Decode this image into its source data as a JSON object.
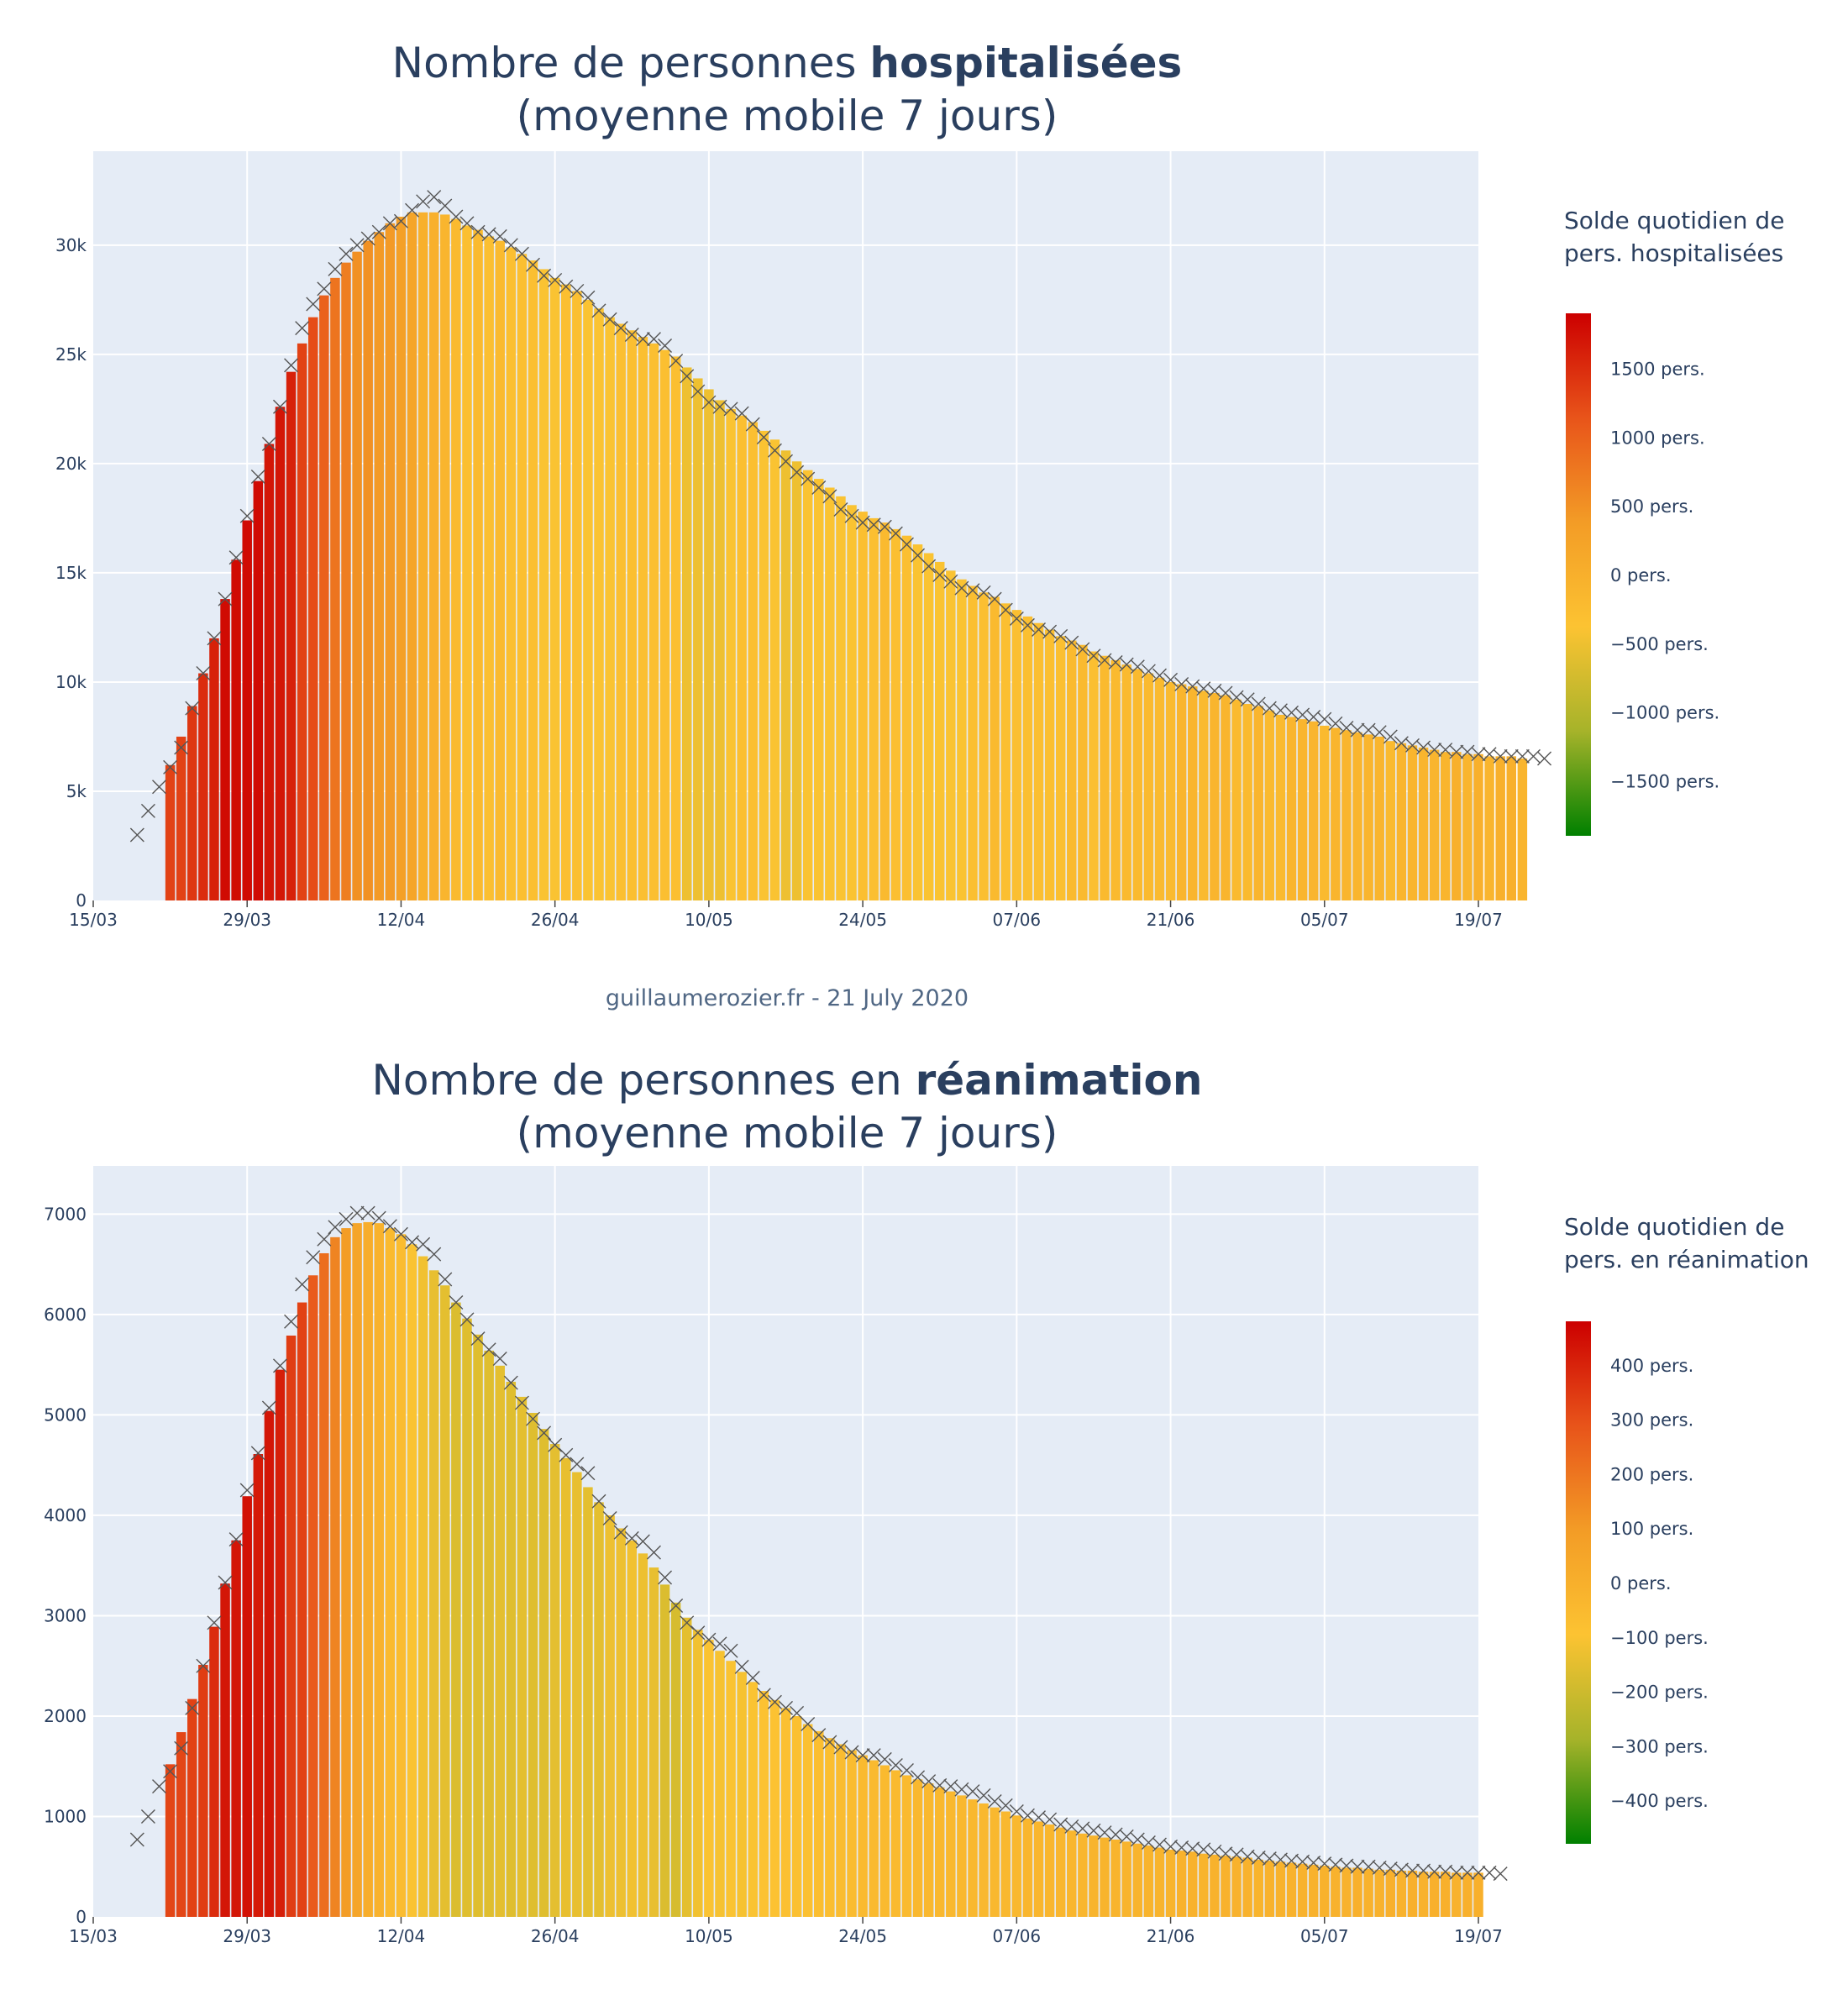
{
  "credit": "guillaumerozier.fr - 21 July 2020",
  "colors": {
    "plot_bg": "#e5ecf6",
    "grid": "#ffffff",
    "text": "#2a3f5f",
    "marker": "#555555",
    "scale": [
      "#008000",
      "#a6b32a",
      "#fcc332",
      "#f39c26",
      "#e8541a",
      "#cc0000"
    ]
  },
  "chart_data": [
    {
      "type": "bar",
      "title_prefix": "Nombre de personnes ",
      "title_bold": "hospitalisées",
      "subtitle": "(moyenne mobile 7 jours)",
      "x_start": "2020-03-19",
      "x_ticks": [
        "15/03",
        "29/03",
        "12/04",
        "26/04",
        "10/05",
        "24/05",
        "07/06",
        "21/06",
        "05/07",
        "19/07"
      ],
      "y_ticks": [
        "0",
        "5k",
        "10k",
        "15k",
        "20k",
        "25k",
        "30k"
      ],
      "ylim": [
        0,
        34300
      ],
      "raw_values": [
        3000,
        4100,
        5200,
        6100,
        7000,
        8800,
        10400,
        12000,
        13800,
        15700,
        17600,
        19400,
        20900,
        22600,
        24500,
        26200,
        27300,
        28000,
        28900,
        29600,
        30000,
        30300,
        30600,
        31000,
        31100,
        31600,
        32000,
        32200,
        31800,
        31300,
        31000,
        30600,
        30500,
        30400,
        30000,
        29600,
        29100,
        28600,
        28400,
        28100,
        27900,
        27600,
        27000,
        26600,
        26200,
        25900,
        25700,
        25700,
        25400,
        24700,
        24000,
        23300,
        22800,
        22600,
        22500,
        22300,
        21800,
        21200,
        20600,
        20100,
        19600,
        19300,
        18900,
        18500,
        17900,
        17600,
        17300,
        17200,
        17100,
        16800,
        16300,
        15800,
        15300,
        14900,
        14600,
        14300,
        14200,
        14100,
        13800,
        13300,
        12900,
        12600,
        12400,
        12300,
        12100,
        11800,
        11500,
        11200,
        11000,
        10900,
        10800,
        10700,
        10500,
        10300,
        10100,
        9900,
        9800,
        9700,
        9600,
        9500,
        9300,
        9200,
        9000,
        8800,
        8700,
        8600,
        8500,
        8400,
        8300,
        8100,
        7900,
        7800,
        7800,
        7700,
        7500,
        7200,
        7100,
        7000,
        6900,
        6900,
        6800,
        6800,
        6700,
        6700,
        6600,
        6600,
        6600,
        6600,
        6500
      ],
      "bar_offset": 3,
      "bar_values": [
        6200,
        7500,
        8900,
        10400,
        12000,
        13800,
        15600,
        17400,
        19200,
        20900,
        22600,
        24200,
        25500,
        26700,
        27700,
        28500,
        29200,
        29700,
        30200,
        30600,
        31000,
        31300,
        31500,
        31500,
        31500,
        31400,
        31200,
        30900,
        30700,
        30400,
        30200,
        29900,
        29600,
        29300,
        28900,
        28500,
        28200,
        27900,
        27500,
        27100,
        26700,
        26400,
        26100,
        25800,
        25500,
        25200,
        24900,
        24400,
        23900,
        23400,
        22900,
        22500,
        22200,
        21900,
        21500,
        21100,
        20600,
        20100,
        19700,
        19300,
        18900,
        18500,
        18100,
        17800,
        17500,
        17300,
        17000,
        16700,
        16300,
        15900,
        15500,
        15100,
        14700,
        14400,
        14100,
        13900,
        13600,
        13300,
        13000,
        12700,
        12400,
        12100,
        11900,
        11700,
        11400,
        11200,
        11000,
        10800,
        10600,
        10400,
        10200,
        10000,
        9900,
        9800,
        9600,
        9500,
        9400,
        9200,
        9000,
        8900,
        8700,
        8500,
        8400,
        8300,
        8200,
        8000,
        7900,
        7800,
        7700,
        7600,
        7500,
        7300,
        7200,
        7100,
        7000,
        6900,
        6800,
        6800,
        6700,
        6700,
        6600,
        6600,
        6600,
        6500
      ],
      "colorbar": {
        "title": [
          "Solde quotidien de",
          "pers. hospitalisées"
        ],
        "range": [
          -1900,
          1900
        ],
        "ticks": [
          {
            "value": 1500,
            "label": "1500 pers."
          },
          {
            "value": 1000,
            "label": "1000 pers."
          },
          {
            "value": 500,
            "label": "500 pers."
          },
          {
            "value": 0,
            "label": "0 pers."
          },
          {
            "value": -500,
            "label": "−500 pers."
          },
          {
            "value": -1000,
            "label": "−1000 pers."
          },
          {
            "value": -1500,
            "label": "−1500 pers."
          }
        ]
      }
    },
    {
      "type": "bar",
      "title_prefix": "Nombre de personnes en ",
      "title_bold": "réanimation",
      "subtitle": "(moyenne mobile 7 jours)",
      "x_start": "2020-03-19",
      "x_ticks": [
        "15/03",
        "29/03",
        "12/04",
        "26/04",
        "10/05",
        "24/05",
        "07/06",
        "21/06",
        "05/07",
        "19/07"
      ],
      "y_ticks": [
        "0",
        "1000",
        "2000",
        "3000",
        "4000",
        "5000",
        "6000",
        "7000"
      ],
      "ylim": [
        0,
        7480
      ],
      "raw_values": [
        770,
        1000,
        1300,
        1450,
        1680,
        2080,
        2500,
        2930,
        3330,
        3760,
        4250,
        4620,
        5070,
        5490,
        5930,
        6300,
        6570,
        6750,
        6870,
        6950,
        7010,
        7010,
        6960,
        6880,
        6800,
        6720,
        6700,
        6600,
        6350,
        6120,
        5950,
        5760,
        5650,
        5560,
        5320,
        5120,
        4960,
        4820,
        4700,
        4600,
        4510,
        4420,
        4140,
        3970,
        3830,
        3770,
        3740,
        3630,
        3380,
        3100,
        2930,
        2830,
        2760,
        2720,
        2650,
        2490,
        2380,
        2210,
        2140,
        2080,
        2030,
        1920,
        1810,
        1740,
        1690,
        1640,
        1610,
        1610,
        1570,
        1510,
        1460,
        1390,
        1350,
        1310,
        1300,
        1270,
        1250,
        1210,
        1150,
        1110,
        1050,
        1010,
        990,
        970,
        920,
        900,
        880,
        860,
        840,
        820,
        800,
        770,
        740,
        720,
        700,
        690,
        680,
        670,
        650,
        630,
        620,
        600,
        590,
        580,
        570,
        560,
        550,
        540,
        530,
        520,
        510,
        500,
        500,
        490,
        480,
        470,
        460,
        460,
        450,
        450,
        440,
        440,
        440,
        440,
        430
      ],
      "bar_offset": 3,
      "bar_values": [
        1520,
        1840,
        2170,
        2510,
        2890,
        3320,
        3750,
        4190,
        4610,
        5040,
        5450,
        5790,
        6120,
        6390,
        6610,
        6770,
        6860,
        6910,
        6920,
        6910,
        6860,
        6800,
        6700,
        6580,
        6440,
        6290,
        6120,
        5960,
        5800,
        5640,
        5490,
        5330,
        5180,
        5020,
        4860,
        4710,
        4570,
        4430,
        4280,
        4130,
        4000,
        3870,
        3750,
        3620,
        3480,
        3310,
        3130,
        2980,
        2860,
        2760,
        2650,
        2550,
        2440,
        2340,
        2250,
        2160,
        2080,
        2000,
        1920,
        1850,
        1780,
        1720,
        1660,
        1610,
        1560,
        1510,
        1460,
        1410,
        1370,
        1330,
        1290,
        1250,
        1210,
        1170,
        1130,
        1090,
        1050,
        1010,
        980,
        950,
        920,
        890,
        860,
        830,
        810,
        790,
        770,
        750,
        730,
        710,
        690,
        670,
        660,
        650,
        630,
        620,
        610,
        600,
        590,
        570,
        560,
        550,
        540,
        530,
        520,
        510,
        500,
        490,
        490,
        480,
        470,
        470,
        460,
        460,
        450,
        450,
        450,
        440,
        440,
        440
      ],
      "colorbar": {
        "title": [
          "Solde quotidien de",
          "pers. en réanimation"
        ],
        "range": [
          -480,
          480
        ],
        "ticks": [
          {
            "value": 400,
            "label": "400 pers."
          },
          {
            "value": 300,
            "label": "300 pers."
          },
          {
            "value": 200,
            "label": "200 pers."
          },
          {
            "value": 100,
            "label": "100 pers."
          },
          {
            "value": 0,
            "label": "0 pers."
          },
          {
            "value": -100,
            "label": "−100 pers."
          },
          {
            "value": -200,
            "label": "−200 pers."
          },
          {
            "value": -300,
            "label": "−300 pers."
          },
          {
            "value": -400,
            "label": "−400 pers."
          }
        ]
      }
    }
  ]
}
